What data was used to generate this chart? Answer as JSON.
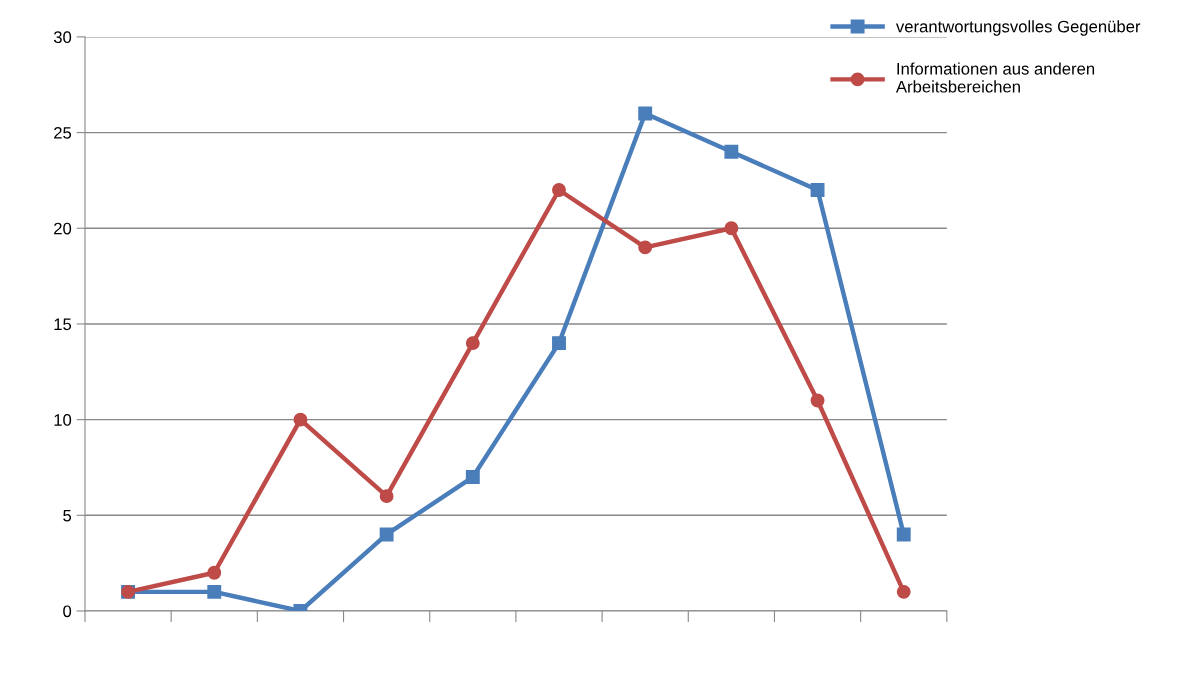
{
  "chart_data": {
    "type": "line",
    "categories": [
      null,
      null,
      null,
      null,
      null,
      null,
      null,
      null,
      null,
      null
    ],
    "series": [
      {
        "name": "verantwortungsvolles Gegenüber",
        "color": "#4a7ebb",
        "marker": "square",
        "values": [
          1,
          1,
          0,
          4,
          7,
          14,
          26,
          24,
          22,
          4
        ]
      },
      {
        "name": "Informationen aus anderen\nArbeitsbereichen",
        "color": "#be4b48",
        "marker": "circle",
        "values": [
          1,
          2,
          10,
          6,
          14,
          22,
          19,
          20,
          11,
          1
        ]
      }
    ],
    "ylim": [
      0,
      30
    ],
    "yticks": [
      0,
      5,
      10,
      15,
      20,
      25,
      30
    ],
    "grid": "y",
    "legend": "top right",
    "line_style": "solid"
  }
}
